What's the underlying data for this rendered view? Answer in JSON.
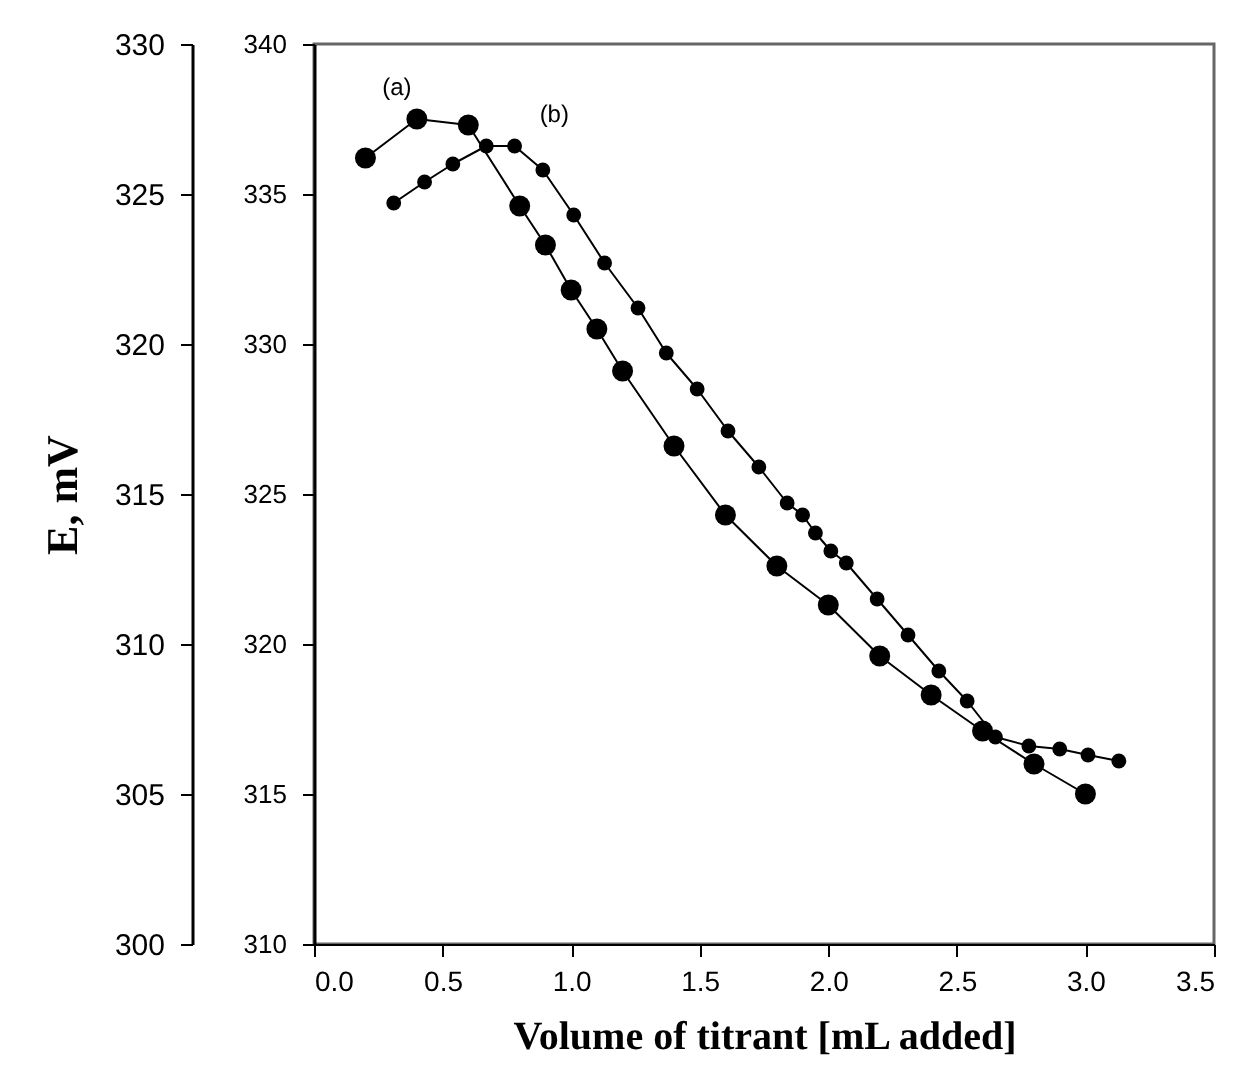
{
  "chart_data": {
    "type": "line",
    "xlabel": "Volume of titrant [mL added]",
    "ylabel": "E, mV",
    "xlim": [
      0,
      3.5
    ],
    "xticks": [
      {
        "value": 0,
        "label": "0.0"
      },
      {
        "value": 0.5,
        "label": "0.5"
      },
      {
        "value": 1,
        "label": "1.0"
      },
      {
        "value": 1.5,
        "label": "1.5"
      },
      {
        "value": 2,
        "label": "2.0"
      },
      {
        "value": 2.5,
        "label": "2.5"
      },
      {
        "value": 3,
        "label": "3.0"
      },
      {
        "value": 3.5,
        "label": "3.5"
      }
    ],
    "ylim": [
      300,
      330
    ],
    "yticks": [
      300,
      305,
      310,
      315,
      320,
      325,
      330
    ],
    "y2lim": [
      310,
      340
    ],
    "y2ticks": [
      310,
      315,
      320,
      325,
      330,
      335,
      340
    ],
    "marker": "circle",
    "line_style": "solid",
    "series": [
      {
        "name": "(a)",
        "color": "#000000",
        "x": [
          0.2,
          0.4,
          0.6,
          0.8,
          0.9,
          1.0,
          1.1,
          1.2,
          1.4,
          1.6,
          1.8,
          2.0,
          2.2,
          2.4,
          2.6,
          2.8,
          3.0
        ],
        "values": [
          326.2,
          327.5,
          327.3,
          324.6,
          323.3,
          321.8,
          320.5,
          319.1,
          316.6,
          314.3,
          312.6,
          311.3,
          309.6,
          308.3,
          307.1,
          306.0,
          305.0
        ]
      },
      {
        "name": "(b)",
        "color": "#000000",
        "axis": "y2",
        "x": [
          0.31,
          0.43,
          0.54,
          0.67,
          0.78,
          0.89,
          1.01,
          1.13,
          1.26,
          1.37,
          1.49,
          1.61,
          1.73,
          1.84,
          1.9,
          1.95,
          2.01,
          2.07,
          2.19,
          2.31,
          2.43,
          2.54,
          2.65,
          2.78,
          2.9,
          3.01,
          3.13
        ],
        "values": [
          334.7,
          335.4,
          336.0,
          336.6,
          336.6,
          335.8,
          334.3,
          332.7,
          331.2,
          329.7,
          328.5,
          327.1,
          325.9,
          324.7,
          324.3,
          323.7,
          323.1,
          322.7,
          321.5,
          320.3,
          319.1,
          318.1,
          316.9,
          316.6,
          316.5,
          316.3,
          316.1
        ]
      }
    ]
  }
}
